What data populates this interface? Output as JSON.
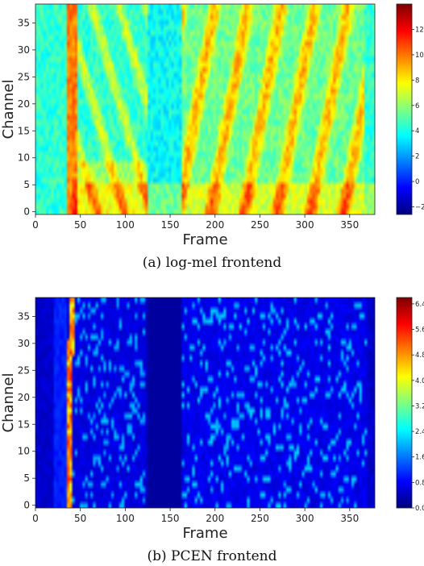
{
  "chart_data": [
    {
      "type": "heatmap",
      "caption": "(a)  log-mel frontend",
      "xlabel": "Frame",
      "ylabel": "Channel",
      "xlim": [
        0,
        378
      ],
      "ylim": [
        0,
        39
      ],
      "x_ticks": [
        "0",
        "50",
        "100",
        "150",
        "200",
        "250",
        "300",
        "350"
      ],
      "y_ticks": [
        "0",
        "5",
        "10",
        "15",
        "20",
        "25",
        "30",
        "35"
      ],
      "colorbar": {
        "range": [
          -2.6,
          14
        ],
        "ticks": [
          "−2",
          "0",
          "2",
          "4",
          "6",
          "8",
          "10",
          "12"
        ],
        "colormap": "jet"
      }
    },
    {
      "type": "heatmap",
      "caption": "(b)  PCEN frontend",
      "xlabel": "Frame",
      "ylabel": "Channel",
      "xlim": [
        0,
        378
      ],
      "ylim": [
        0,
        39
      ],
      "x_ticks": [
        "0",
        "50",
        "100",
        "150",
        "200",
        "250",
        "300",
        "350"
      ],
      "y_ticks": [
        "0",
        "5",
        "10",
        "15",
        "20",
        "25",
        "30",
        "35"
      ],
      "colorbar": {
        "range": [
          0,
          6.6
        ],
        "ticks": [
          "0.0",
          "0.8",
          "1.6",
          "2.4",
          "3.2",
          "4.0",
          "4.8",
          "5.6",
          "6.4"
        ],
        "colormap": "jet"
      }
    }
  ]
}
